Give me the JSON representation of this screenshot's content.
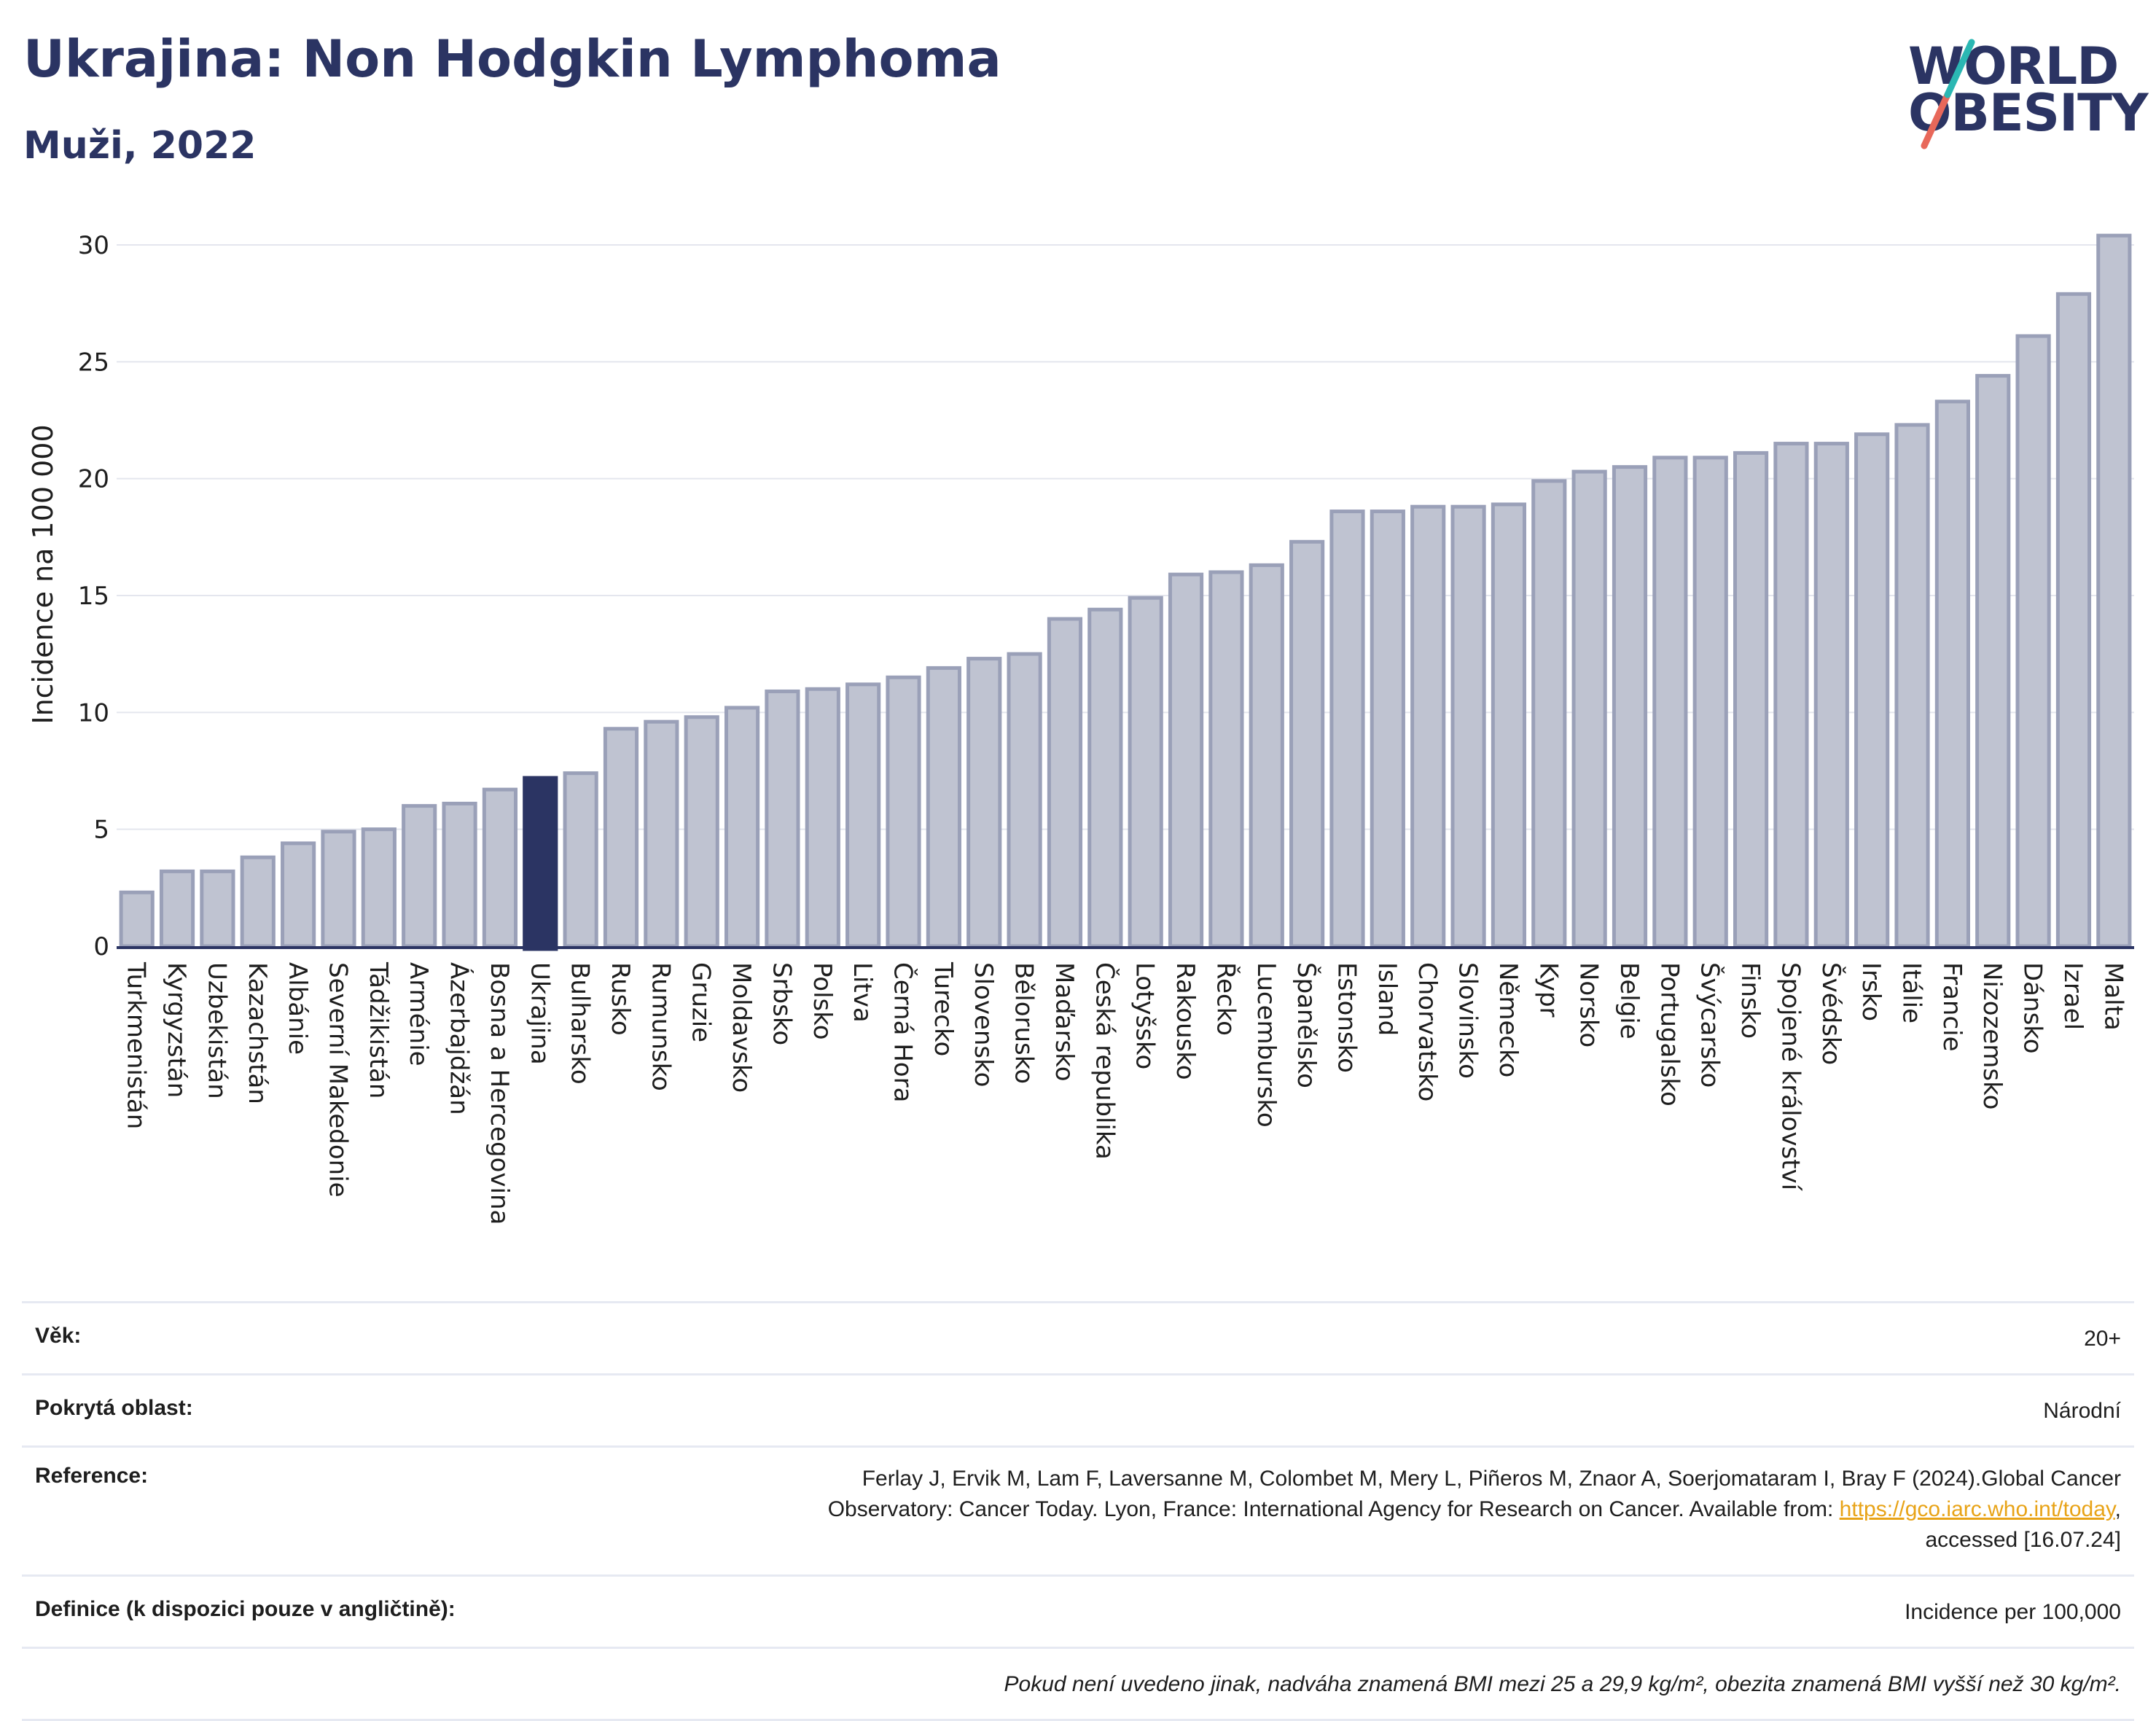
{
  "header": {
    "title": "Ukrajina: Non Hodgkin Lymphoma",
    "subtitle": "Muži, 2022"
  },
  "logo": {
    "line1": "WORLD",
    "line2": "OBESITY"
  },
  "colors": {
    "bar": "#bfc3d1",
    "bar_stroke": "#9aa0b8",
    "highlight": "#2b3463",
    "text_dark": "#2b3463"
  },
  "chart_data": {
    "type": "bar",
    "ylabel": "Incidence na 100 000",
    "xlabel": "",
    "ylim": [
      0,
      31
    ],
    "yticks": [
      0,
      5,
      10,
      15,
      20,
      25,
      30
    ],
    "grid": true,
    "highlight_category": "Ukrajina",
    "categories": [
      "Turkmenistán",
      "Kyrgyzstán",
      "Uzbekistán",
      "Kazachstán",
      "Albánie",
      "Severní Makedonie",
      "Tádžikistán",
      "Arménie",
      "Ázerbajdžán",
      "Bosna a Hercegovina",
      "Ukrajina",
      "Bulharsko",
      "Rusko",
      "Rumunsko",
      "Gruzie",
      "Moldavsko",
      "Srbsko",
      "Polsko",
      "Litva",
      "Černá Hora",
      "Turecko",
      "Slovensko",
      "Bělorusko",
      "Maďarsko",
      "Česká republika",
      "Lotyšsko",
      "Rakousko",
      "Řecko",
      "Lucembursko",
      "Španělsko",
      "Estonsko",
      "Island",
      "Chorvatsko",
      "Slovinsko",
      "Německo",
      "Kypr",
      "Norsko",
      "Belgie",
      "Portugalsko",
      "Švýcarsko",
      "Finsko",
      "Spojené království",
      "Švédsko",
      "Irsko",
      "Itálie",
      "Francie",
      "Nizozemsko",
      "Dánsko",
      "Izrael",
      "Malta"
    ],
    "values": [
      2.3,
      3.2,
      3.2,
      3.8,
      4.4,
      4.9,
      5.0,
      6.0,
      6.1,
      6.7,
      7.2,
      7.4,
      9.3,
      9.6,
      9.8,
      10.2,
      10.9,
      11.0,
      11.2,
      11.5,
      11.9,
      12.3,
      12.5,
      14.0,
      14.4,
      14.9,
      15.9,
      16.0,
      16.3,
      17.3,
      18.6,
      18.6,
      18.8,
      18.8,
      18.9,
      19.9,
      20.3,
      20.5,
      20.9,
      20.9,
      21.1,
      21.5,
      21.5,
      21.9,
      22.3,
      23.3,
      24.4,
      26.1,
      27.9,
      30.4
    ]
  },
  "footer": {
    "age_label": "Věk:",
    "age_value": "20+",
    "area_label": "Pokrytá oblast:",
    "area_value": "Národní",
    "reference_label": "Reference:",
    "reference_text_1": "Ferlay J, Ervik M, Lam F, Laversanne M, Colombet M, Mery L, Piñeros M, Znaor A, Soerjomataram I, Bray F (2024).Global Cancer",
    "reference_text_2": "Observatory: Cancer Today. Lyon, France: International Agency for Research on Cancer. Available from: ",
    "reference_link": "https://gco.iarc.who.int/today",
    "reference_text_3": ",",
    "reference_text_4": "accessed [16.07.24]",
    "definition_label": "Definice (k dispozici pouze v angličtině):",
    "definition_value": "Incidence per 100,000",
    "note": "Pokud není uvedeno jinak, nadváha znamená BMI mezi 25 a 29,9 kg/m², obezita znamená BMI vyšší než 30 kg/m²."
  }
}
